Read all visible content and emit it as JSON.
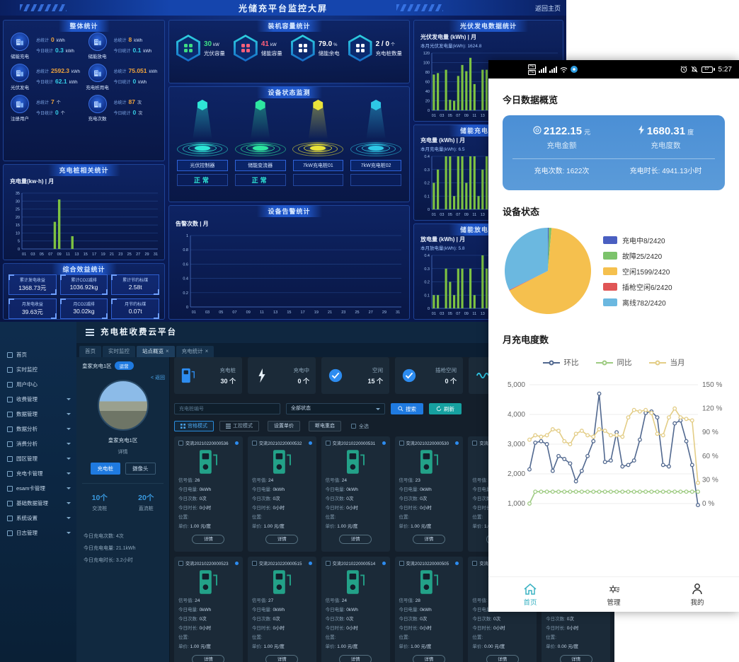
{
  "dashboard": {
    "title": "光储充平台监控大屏",
    "back_link": "返回主页",
    "overall": {
      "title": "整体统计",
      "total_label": "总统计",
      "today_label": "今日统计",
      "items": [
        {
          "label": "储能充电",
          "total": "0",
          "total_unit": "kWh",
          "today": "0.3",
          "today_unit": "kWh"
        },
        {
          "label": "储能放电",
          "total": "8",
          "total_unit": "kWh",
          "today": "0.1",
          "today_unit": "kWh"
        },
        {
          "label": "光伏发电",
          "total": "2592.3",
          "total_unit": "kWh",
          "today": "62.1",
          "today_unit": "kWh"
        },
        {
          "label": "充电桩用电",
          "total": "75.051",
          "total_unit": "kWh",
          "today": "0",
          "today_unit": "kWh"
        },
        {
          "label": "注册用户",
          "total": "7",
          "total_unit": "个",
          "today": "0",
          "today_unit": "个"
        },
        {
          "label": "充电次数",
          "total": "87",
          "total_unit": "次",
          "today": "0",
          "today_unit": "次"
        }
      ]
    },
    "pile_panel": {
      "title": "充电桩相关统计",
      "chart_label": "充电量(kw·h) | 月"
    },
    "benefit": {
      "title": "综合效益统计",
      "boxes": [
        {
          "label": "累计发电收益",
          "value": "1368.73元"
        },
        {
          "label": "累计CO2减排",
          "value": "1036.92kg"
        },
        {
          "label": "累计节约标煤",
          "value": "2.58t"
        },
        {
          "label": "月发电收益",
          "value": "39.63元"
        },
        {
          "label": "月CO2减排",
          "value": "30.02kg"
        },
        {
          "label": "月节约标煤",
          "value": "0.07t"
        }
      ]
    },
    "capacity": {
      "title": "装机容量统计",
      "items": [
        {
          "label": "光伏容量",
          "value": "30",
          "unit": "kW",
          "color": "#3ddc84"
        },
        {
          "label": "储能容量",
          "value": "41",
          "unit": "kW",
          "color": "#ff5f7a"
        },
        {
          "label": "储能余电",
          "value": "79.0",
          "unit": "%",
          "color": "#ffffff"
        },
        {
          "label": "充电桩数量",
          "value": "2 / 0",
          "unit": "个",
          "color": "#ffffff"
        }
      ]
    },
    "devices": {
      "title": "设备状态监测",
      "items": [
        {
          "name": "光伏控制器",
          "status": "正常",
          "color": "#2ee6d6"
        },
        {
          "name": "储能变流器",
          "status": "正常",
          "color": "#2ee6a0"
        },
        {
          "name": "7kW充电桩01",
          "status": "",
          "color": "#e8e23a"
        },
        {
          "name": "7kW充电桩02",
          "status": "",
          "color": "#2ec8e6"
        }
      ]
    },
    "alarm_panel": {
      "title": "设备告警统计",
      "chart_label": "告警次数 | 月"
    },
    "pv_panel": {
      "title": "光伏发电数据统计",
      "chart_label": "光伏发电量 (kWh) | 月",
      "subtitle": "本月光伏发电量(kWh): 1624.8"
    },
    "ess_charge_panel": {
      "title": "储能充电数据统计",
      "chart_label": "充电量 (kWh) | 月",
      "subtitle": "本月充电量(kWh): 6.5"
    },
    "ess_discharge_panel": {
      "title": "储能放电数据统计",
      "chart_label": "放电量 (kWh) | 月",
      "subtitle": "本月放电量(kWh): 5.8"
    }
  },
  "admin": {
    "title": "充电桩收费云平台",
    "tabs": [
      {
        "label": "首页"
      },
      {
        "label": "实时监控"
      },
      {
        "label": "站点概览",
        "closable": true,
        "active": true
      },
      {
        "label": "充电统计",
        "closable": true
      }
    ],
    "sidebar": {
      "items": [
        {
          "label": "首页",
          "chev": false
        },
        {
          "label": "实时监控",
          "chev": false
        },
        {
          "label": "用户中心",
          "chev": false
        },
        {
          "label": "收费管理",
          "chev": true
        },
        {
          "label": "数据管理",
          "chev": true
        },
        {
          "label": "数据分析",
          "chev": true
        },
        {
          "label": "消费分析",
          "chev": true
        },
        {
          "label": "园区管理",
          "chev": true
        },
        {
          "label": "充电卡管理",
          "chev": true
        },
        {
          "label": "esam卡管理",
          "chev": true
        },
        {
          "label": "基础数据管理",
          "chev": true
        },
        {
          "label": "系统设置",
          "chev": true
        },
        {
          "label": "日志管理",
          "chev": true
        }
      ]
    },
    "station": {
      "name": "皇家充电1区",
      "badge": "运营",
      "back": "< 返回",
      "photo_caption": "皇家充电1区",
      "detail_link": "详情",
      "btn_pile": "充电桩",
      "btn_camera": "摄像头",
      "ac_count": "10个",
      "ac_label": "交流桩",
      "dc_count": "20个",
      "dc_label": "直流桩",
      "today_lines": [
        "今日充电次数: 4次",
        "今日充电电量: 21.1kWh",
        "今日充电时长: 3.2小时"
      ]
    },
    "tiles": [
      {
        "label": "充电桩",
        "value": "30 个",
        "icon": "pile"
      },
      {
        "label": "充电中",
        "value": "0 个",
        "icon": "bolt"
      },
      {
        "label": "空闲",
        "value": "15 个",
        "icon": "check"
      },
      {
        "label": "插枪空闲",
        "value": "0 个",
        "icon": "check"
      },
      {
        "label": "离线",
        "value": "",
        "icon": "wave"
      },
      {
        "label": "",
        "value": "",
        "icon": "wave"
      }
    ],
    "filter": {
      "input_placeholder": "充电桩编号",
      "select_value": "全部状态",
      "search_label": "搜索",
      "refresh_label": "刷新"
    },
    "modes": {
      "grid_label": "宫格模式",
      "list_label": "工控模式",
      "price_label": "设置单价",
      "reboot_label": "断电重启",
      "select_all": "全选"
    },
    "card_fields": {
      "signal": "信号值:",
      "energy": "今日电量:",
      "times": "今日次数:",
      "duration": "今日时长:",
      "location": "位置:",
      "price": "单价:",
      "detail": "详情"
    },
    "cards_row1": [
      {
        "title": "交流20210220000536",
        "signal": "26",
        "energy": "0kWh",
        "times": "0次",
        "duration": "0小时",
        "location": "",
        "price": "1.00 元/度"
      },
      {
        "title": "交流20210220000532",
        "signal": "24",
        "energy": "0kWh",
        "times": "0次",
        "duration": "0小时",
        "location": "",
        "price": "1.00 元/度"
      },
      {
        "title": "交流20210220000531",
        "signal": "24",
        "energy": "0kWh",
        "times": "0次",
        "duration": "0小时",
        "location": "",
        "price": "1.00 元/度"
      },
      {
        "title": "交流20210220000530",
        "signal": "23",
        "energy": "0kWh",
        "times": "0次",
        "duration": "0小时",
        "location": "",
        "price": "1.00 元/度"
      },
      {
        "title": "交流20210220000529",
        "signal": "25",
        "energy": "0kWh",
        "times": "0次",
        "duration": "0小时",
        "location": "",
        "price": "1.00 元/度"
      },
      {
        "title": "交流20210220000528",
        "signal": "25",
        "energy": "0kWh",
        "times": "0次",
        "duration": "0小时",
        "location": "",
        "price": "1.00 元/度"
      }
    ],
    "cards_row2": [
      {
        "title": "交流20210220000523",
        "signal": "24",
        "energy": "0kWh",
        "times": "0次",
        "duration": "0小时",
        "location": "",
        "price": "1.00 元/度"
      },
      {
        "title": "交流20210220000515",
        "signal": "27",
        "energy": "0kWh",
        "times": "0次",
        "duration": "0小时",
        "location": "",
        "price": "1.00 元/度"
      },
      {
        "title": "交流20210220000514",
        "signal": "24",
        "energy": "0kWh",
        "times": "0次",
        "duration": "0小时",
        "location": "",
        "price": "1.00 元/度"
      },
      {
        "title": "交流20210220000505",
        "signal": "28",
        "energy": "0kWh",
        "times": "0次",
        "duration": "0小时",
        "location": "",
        "price": "1.00 元/度"
      },
      {
        "title": "交流20210220000504",
        "signal": "25",
        "energy": "0kWh",
        "times": "0次",
        "duration": "0小时",
        "location": "",
        "price": "0.00 元/度"
      },
      {
        "title": "交流20210220000503",
        "signal": "25",
        "energy": "0kWh",
        "times": "0次",
        "duration": "0小时",
        "location": "",
        "price": "0.00 元/度"
      }
    ]
  },
  "mobile": {
    "status": {
      "time": "5:27",
      "battery": "67"
    },
    "overview_title": "今日数据概览",
    "card": {
      "amount": "2122.15",
      "amount_unit": "元",
      "amount_label": "充电金额",
      "kwh": "1680.31",
      "kwh_unit": "度",
      "kwh_label": "充电度数",
      "times": "充电次数: 1622次",
      "duration": "充电时长: 4941.13小时"
    },
    "device_title": "设备状态",
    "month_title": "月充电度数",
    "nav": [
      {
        "label": "首页",
        "active": true
      },
      {
        "label": "管理"
      },
      {
        "label": "我的"
      }
    ]
  },
  "chart_data": [
    {
      "id": "pv-month",
      "type": "bar",
      "title": "光伏发电量 (kWh) | 月",
      "ylim": [
        0,
        120
      ],
      "yticks": [
        0,
        20,
        40,
        60,
        80,
        100,
        120
      ],
      "xtick_every": 2,
      "color": "#7dc242",
      "values": [
        75,
        78,
        0,
        85,
        22,
        20,
        72,
        95,
        82,
        110,
        55,
        0,
        85,
        85,
        52,
        30,
        0,
        0,
        0,
        0,
        0,
        0,
        0,
        0,
        0,
        0,
        0,
        0,
        0,
        0,
        0
      ]
    },
    {
      "id": "ess-charge",
      "type": "bar",
      "title": "充电量 (kWh) | 月",
      "ylim": [
        0,
        0.4
      ],
      "yticks": [
        0,
        0.1,
        0.2,
        0.3,
        0.4
      ],
      "xtick_every": 2,
      "color": "#7dc242",
      "values": [
        0.2,
        0.3,
        0,
        0.4,
        0.4,
        0.1,
        0.4,
        0.4,
        0.2,
        0.4,
        0.4,
        0.1,
        0.3,
        0.4,
        0.2,
        0.1,
        0,
        0,
        0,
        0,
        0,
        0,
        0,
        0,
        0,
        0,
        0,
        0,
        0,
        0,
        0
      ]
    },
    {
      "id": "ess-discharge",
      "type": "bar",
      "title": "放电量 (kWh) | 月",
      "ylim": [
        0,
        0.4
      ],
      "yticks": [
        0,
        0.1,
        0.2,
        0.3,
        0.4
      ],
      "xtick_every": 2,
      "color": "#7dc242",
      "values": [
        0.1,
        0.1,
        0,
        0.3,
        0.2,
        0.1,
        0.3,
        0.3,
        0,
        0.3,
        0.1,
        0,
        0.4,
        0.3,
        0.3,
        0.2,
        0,
        0,
        0,
        0,
        0,
        0,
        0,
        0,
        0,
        0,
        0,
        0,
        0,
        0,
        0
      ]
    },
    {
      "id": "pile-month",
      "type": "bar",
      "title": "充电量(kw·h) | 月",
      "ylim": [
        0,
        35
      ],
      "yticks": [
        0,
        5,
        10,
        15,
        20,
        25,
        30,
        35
      ],
      "xtick_every": 2,
      "color": "#7dc242",
      "values": [
        0,
        0,
        0,
        0,
        0,
        0,
        0,
        17,
        31,
        0,
        0,
        8,
        0,
        0,
        0,
        0,
        0,
        0,
        0,
        0,
        0,
        0,
        0,
        0,
        0,
        0,
        0,
        0,
        0,
        0,
        0
      ]
    },
    {
      "id": "alarm-month",
      "type": "bar",
      "title": "告警次数 | 月",
      "ylim": [
        0,
        1
      ],
      "yticks": [
        0,
        0.2,
        0.4,
        0.6,
        0.8,
        1
      ],
      "xtick_every": 2,
      "color": "#7dc242",
      "values": [
        0,
        0,
        0,
        0,
        0,
        0,
        0,
        0,
        0,
        0,
        0,
        0,
        0,
        0,
        0,
        0,
        0,
        0,
        0,
        0,
        0,
        0,
        0,
        0,
        0,
        0,
        0,
        0,
        0,
        0,
        0
      ]
    },
    {
      "id": "device-pie",
      "type": "pie",
      "title": "设备状态",
      "slices": [
        {
          "label": "充电中8/2420",
          "value": 8,
          "color": "#4a5fc1"
        },
        {
          "label": "故障25/2420",
          "value": 25,
          "color": "#7cc36b"
        },
        {
          "label": "空闲1599/2420",
          "value": 1599,
          "color": "#f5c04e"
        },
        {
          "label": "插枪空闲6/2420",
          "value": 6,
          "color": "#e05555"
        },
        {
          "label": "离线782/2420",
          "value": 782,
          "color": "#6bb8e0"
        }
      ]
    },
    {
      "id": "month-energy",
      "type": "line",
      "title": "月充电度数",
      "left_axis": {
        "min": 1000,
        "max": 5000,
        "labels": [
          "5,000",
          "4,000",
          "3,000",
          "2,000",
          "1,000"
        ]
      },
      "right_axis": {
        "labels": [
          "150 %",
          "120 %",
          "90 %",
          "60 %",
          "30 %",
          "0 %"
        ]
      },
      "series": [
        {
          "name": "环比",
          "color": "#51688f",
          "values": [
            2150,
            3050,
            3100,
            3000,
            2100,
            2600,
            2500,
            2350,
            1750,
            2100,
            2600,
            3100,
            4700,
            2400,
            2450,
            3400,
            2250,
            2300,
            2450,
            3150,
            4050,
            4100,
            3900,
            2300,
            2250,
            3700,
            3800,
            3100,
            2300,
            950
          ]
        },
        {
          "name": "同比",
          "color": "#9ecb82",
          "values": [
            1000,
            1400,
            1400,
            1400,
            1400,
            1400,
            1400,
            1400,
            1400,
            1400,
            1400,
            1400,
            1400,
            1400,
            1400,
            1400,
            1400,
            1400,
            1400,
            1400,
            1400,
            1400,
            1400,
            1400,
            1400,
            1400,
            1400,
            1400,
            1400,
            1400
          ]
        },
        {
          "name": "当月",
          "color": "#e3cd86",
          "values": [
            3150,
            3300,
            3250,
            3300,
            3500,
            3450,
            3100,
            3000,
            3350,
            3450,
            3300,
            3250,
            3500,
            3450,
            3300,
            3300,
            3250,
            3900,
            4150,
            4100,
            4150,
            4050,
            3350,
            3300,
            3900,
            4200,
            3900,
            3850,
            3800,
            1700
          ]
        }
      ]
    }
  ]
}
